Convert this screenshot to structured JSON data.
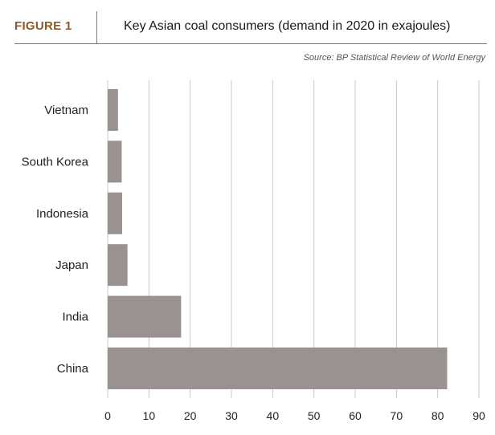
{
  "header": {
    "figure_label": "FIGURE 1",
    "title": "Key Asian coal consumers (demand in 2020 in exajoules)",
    "source": "Source: BP Statistical Review of World Energy"
  },
  "colors": {
    "accent": "#8a5a2b",
    "bar": "#9a9291",
    "grid": "#c8c8c8",
    "rule": "#7a7a7a"
  },
  "chart_data": {
    "type": "bar",
    "orientation": "horizontal",
    "title": "Key Asian coal consumers (demand in 2020 in exajoules)",
    "categories": [
      "Vietnam",
      "South Korea",
      "Indonesia",
      "Japan",
      "India",
      "China"
    ],
    "values": [
      2.5,
      3.4,
      3.5,
      4.8,
      17.8,
      82.3
    ],
    "xlim": [
      0,
      90
    ],
    "xticks": [
      0,
      10,
      20,
      30,
      40,
      50,
      60,
      70,
      80,
      90
    ],
    "grid": "vertical"
  }
}
